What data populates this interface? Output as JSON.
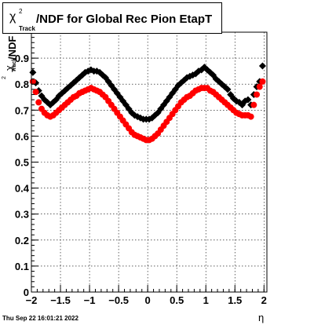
{
  "title": {
    "chi": "χ",
    "sup": "2",
    "sub": "Track",
    "main": "/NDF for Global Rec Pion EtapT"
  },
  "timestamp": "Thu Sep 22 16:01:21 2022",
  "axes": {
    "xlabel": "η",
    "ylabel_chi": "χ",
    "ylabel_sup": "2",
    "ylabel_sub": "Track",
    "ylabel_main": "/NDF"
  },
  "chart_data": {
    "type": "scatter",
    "xlim": [
      -2.0,
      2.05
    ],
    "ylim": [
      0,
      1.0
    ],
    "xticks": [
      -2,
      -1.5,
      -1,
      -0.5,
      0,
      0.5,
      1,
      1.5,
      2
    ],
    "xtick_labels": [
      "−2",
      "−1.5",
      "−1",
      "−0.5",
      "0",
      "0.5",
      "1",
      "1.5",
      "2"
    ],
    "yticks": [
      0,
      0.1,
      0.2,
      0.3,
      0.4,
      0.5,
      0.6,
      0.7,
      0.8,
      0.9
    ],
    "ytick_labels": [
      "0",
      "0.1",
      "0.2",
      "0.3",
      "0.4",
      "0.5",
      "0.6",
      "0.7",
      "0.8",
      "0.9"
    ],
    "grid": true,
    "series": [
      {
        "color": "#000000",
        "marker": "diamond",
        "x": [
          -1.975,
          -1.925,
          -1.875,
          -1.825,
          -1.775,
          -1.725,
          -1.675,
          -1.625,
          -1.575,
          -1.525,
          -1.475,
          -1.425,
          -1.375,
          -1.325,
          -1.275,
          -1.225,
          -1.175,
          -1.125,
          -1.075,
          -1.025,
          -0.975,
          -0.925,
          -0.875,
          -0.825,
          -0.775,
          -0.725,
          -0.675,
          -0.625,
          -0.575,
          -0.525,
          -0.475,
          -0.425,
          -0.375,
          -0.325,
          -0.275,
          -0.225,
          -0.175,
          -0.125,
          -0.075,
          -0.025,
          0.025,
          0.075,
          0.125,
          0.175,
          0.225,
          0.275,
          0.325,
          0.375,
          0.425,
          0.475,
          0.525,
          0.575,
          0.625,
          0.675,
          0.725,
          0.775,
          0.825,
          0.875,
          0.925,
          0.975,
          1.025,
          1.075,
          1.125,
          1.175,
          1.225,
          1.275,
          1.325,
          1.375,
          1.425,
          1.475,
          1.525,
          1.575,
          1.625,
          1.675,
          1.725,
          1.775,
          1.825,
          1.875,
          1.925,
          1.975
        ],
        "y": [
          0.845,
          0.805,
          0.775,
          0.755,
          0.74,
          0.73,
          0.72,
          0.73,
          0.74,
          0.755,
          0.765,
          0.775,
          0.785,
          0.795,
          0.805,
          0.815,
          0.825,
          0.835,
          0.845,
          0.85,
          0.855,
          0.85,
          0.85,
          0.845,
          0.835,
          0.825,
          0.81,
          0.795,
          0.78,
          0.765,
          0.75,
          0.735,
          0.72,
          0.705,
          0.69,
          0.68,
          0.675,
          0.67,
          0.665,
          0.665,
          0.665,
          0.67,
          0.68,
          0.69,
          0.705,
          0.72,
          0.735,
          0.75,
          0.765,
          0.78,
          0.795,
          0.805,
          0.815,
          0.825,
          0.83,
          0.835,
          0.84,
          0.85,
          0.855,
          0.865,
          0.855,
          0.845,
          0.835,
          0.82,
          0.81,
          0.8,
          0.79,
          0.78,
          0.76,
          0.745,
          0.735,
          0.73,
          0.72,
          0.735,
          0.74,
          0.72,
          0.76,
          0.79,
          0.81,
          0.87
        ]
      },
      {
        "color": "#ff0000",
        "marker": "circle",
        "x": [
          -1.975,
          -1.925,
          -1.875,
          -1.825,
          -1.775,
          -1.725,
          -1.675,
          -1.625,
          -1.575,
          -1.525,
          -1.475,
          -1.425,
          -1.375,
          -1.325,
          -1.275,
          -1.225,
          -1.175,
          -1.125,
          -1.075,
          -1.025,
          -0.975,
          -0.925,
          -0.875,
          -0.825,
          -0.775,
          -0.725,
          -0.675,
          -0.625,
          -0.575,
          -0.525,
          -0.475,
          -0.425,
          -0.375,
          -0.325,
          -0.275,
          -0.225,
          -0.175,
          -0.125,
          -0.075,
          -0.025,
          0.025,
          0.075,
          0.125,
          0.175,
          0.225,
          0.275,
          0.325,
          0.375,
          0.425,
          0.475,
          0.525,
          0.575,
          0.625,
          0.675,
          0.725,
          0.775,
          0.825,
          0.875,
          0.925,
          0.975,
          1.025,
          1.075,
          1.125,
          1.175,
          1.225,
          1.275,
          1.325,
          1.375,
          1.425,
          1.475,
          1.525,
          1.575,
          1.625,
          1.675,
          1.725,
          1.775,
          1.825,
          1.875,
          1.925,
          1.975
        ],
        "y": [
          0.81,
          0.77,
          0.73,
          0.705,
          0.69,
          0.68,
          0.675,
          0.68,
          0.69,
          0.7,
          0.71,
          0.72,
          0.73,
          0.74,
          0.75,
          0.755,
          0.765,
          0.77,
          0.775,
          0.78,
          0.785,
          0.78,
          0.775,
          0.77,
          0.76,
          0.75,
          0.735,
          0.72,
          0.705,
          0.69,
          0.675,
          0.66,
          0.645,
          0.63,
          0.615,
          0.605,
          0.6,
          0.595,
          0.59,
          0.585,
          0.585,
          0.59,
          0.6,
          0.61,
          0.625,
          0.64,
          0.655,
          0.67,
          0.685,
          0.7,
          0.715,
          0.73,
          0.74,
          0.75,
          0.755,
          0.765,
          0.775,
          0.78,
          0.785,
          0.785,
          0.785,
          0.775,
          0.77,
          0.76,
          0.75,
          0.74,
          0.73,
          0.72,
          0.71,
          0.7,
          0.69,
          0.685,
          0.68,
          0.68,
          0.68,
          0.675,
          0.72,
          0.76,
          0.79,
          0.81
        ]
      }
    ]
  }
}
